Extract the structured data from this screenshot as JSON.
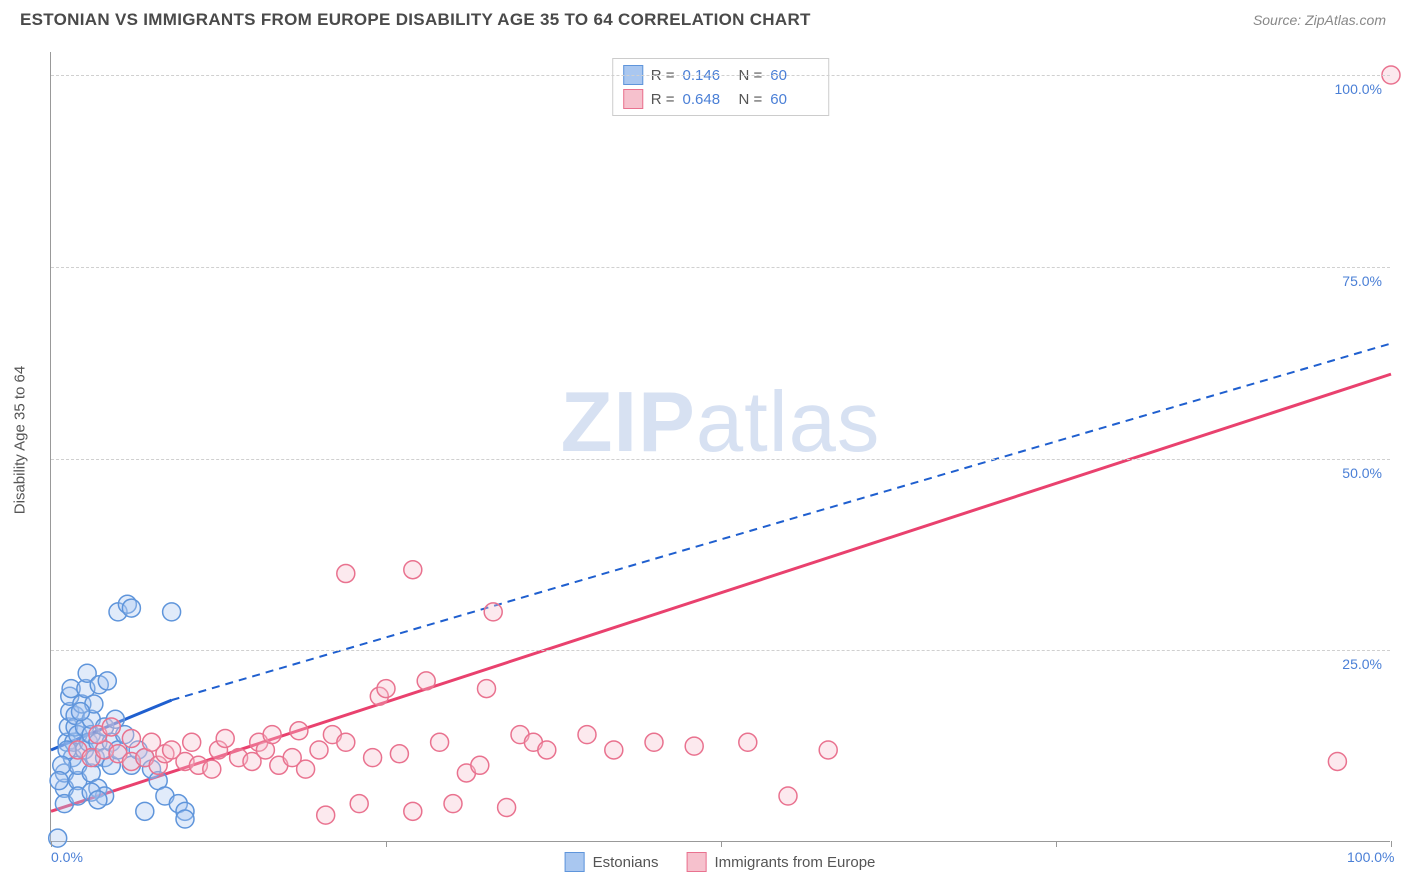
{
  "header": {
    "title": "ESTONIAN VS IMMIGRANTS FROM EUROPE DISABILITY AGE 35 TO 64 CORRELATION CHART",
    "source": "Source: ZipAtlas.com"
  },
  "y_axis_label": "Disability Age 35 to 64",
  "watermark": {
    "zip": "ZIP",
    "atlas": "atlas"
  },
  "chart": {
    "type": "scatter",
    "xlim": [
      0,
      100
    ],
    "ylim": [
      0,
      103
    ],
    "x_ticks": [
      0,
      25,
      50,
      75,
      100
    ],
    "y_ticks": [
      25,
      50,
      75,
      100
    ],
    "x_tick_labels": [
      "0.0%",
      "",
      "",
      "",
      "100.0%"
    ],
    "y_tick_labels": [
      "25.0%",
      "50.0%",
      "75.0%",
      "100.0%"
    ],
    "grid_color": "#d0d0d0",
    "background_color": "#ffffff",
    "marker_radius": 9,
    "marker_stroke_width": 1.5,
    "marker_fill_opacity": 0.35,
    "series": [
      {
        "name": "Estonians",
        "color_fill": "#a9c7f0",
        "color_stroke": "#5f95db",
        "trend_color": "#1f5fcf",
        "trend_solid": {
          "x1": 0,
          "y1": 12,
          "x2": 9,
          "y2": 18.5
        },
        "trend_dash": {
          "x1": 9,
          "y1": 18.5,
          "x2": 100,
          "y2": 65
        },
        "points": [
          [
            0.5,
            0.5
          ],
          [
            1,
            7
          ],
          [
            1,
            9
          ],
          [
            1.2,
            13
          ],
          [
            1.3,
            15
          ],
          [
            1.4,
            17
          ],
          [
            1.4,
            19
          ],
          [
            1.5,
            20
          ],
          [
            1.6,
            11
          ],
          [
            1.7,
            13
          ],
          [
            1.8,
            15
          ],
          [
            1.8,
            16.5
          ],
          [
            2,
            8
          ],
          [
            2,
            10
          ],
          [
            2,
            14
          ],
          [
            2.3,
            18
          ],
          [
            2.5,
            12
          ],
          [
            2.5,
            15
          ],
          [
            2.6,
            20
          ],
          [
            2.7,
            22
          ],
          [
            2.8,
            13
          ],
          [
            3,
            9
          ],
          [
            3,
            14
          ],
          [
            3,
            16
          ],
          [
            3.2,
            18
          ],
          [
            3.3,
            11
          ],
          [
            3.5,
            7
          ],
          [
            3.5,
            13
          ],
          [
            3.6,
            20.5
          ],
          [
            4,
            6
          ],
          [
            4,
            11
          ],
          [
            4,
            15
          ],
          [
            4.2,
            21
          ],
          [
            4.5,
            10
          ],
          [
            4.5,
            13
          ],
          [
            4.8,
            16
          ],
          [
            5,
            30
          ],
          [
            5,
            12
          ],
          [
            5.5,
            14
          ],
          [
            5.7,
            31
          ],
          [
            6,
            10
          ],
          [
            6,
            30.5
          ],
          [
            6.5,
            12
          ],
          [
            7,
            11
          ],
          [
            7,
            4
          ],
          [
            7.5,
            9.5
          ],
          [
            8,
            8
          ],
          [
            8.5,
            6
          ],
          [
            9,
            30
          ],
          [
            9.5,
            5
          ],
          [
            10,
            4
          ],
          [
            10,
            3
          ],
          [
            1,
            5
          ],
          [
            2,
            6
          ],
          [
            3,
            6.5
          ],
          [
            3.5,
            5.5
          ],
          [
            1.2,
            12
          ],
          [
            0.8,
            10
          ],
          [
            0.6,
            8
          ],
          [
            2.2,
            17
          ]
        ]
      },
      {
        "name": "Immigrants from Europe",
        "color_fill": "#f6c1cd",
        "color_stroke": "#e9728f",
        "trend_color": "#e9416e",
        "trend_solid": {
          "x1": 0,
          "y1": 4,
          "x2": 100,
          "y2": 61
        },
        "trend_dash": null,
        "points": [
          [
            2,
            12
          ],
          [
            3,
            11
          ],
          [
            4,
            12
          ],
          [
            5,
            11.5
          ],
          [
            6,
            10.5
          ],
          [
            7,
            11
          ],
          [
            8,
            10
          ],
          [
            8.5,
            11.5
          ],
          [
            9,
            12
          ],
          [
            10,
            10.5
          ],
          [
            10.5,
            13
          ],
          [
            11,
            10
          ],
          [
            12,
            9.5
          ],
          [
            12.5,
            12
          ],
          [
            13,
            13.5
          ],
          [
            14,
            11
          ],
          [
            15,
            10.5
          ],
          [
            15.5,
            13
          ],
          [
            16,
            12
          ],
          [
            17,
            10
          ],
          [
            18,
            11
          ],
          [
            19,
            9.5
          ],
          [
            20,
            12
          ],
          [
            20.5,
            3.5
          ],
          [
            21,
            14
          ],
          [
            22,
            13
          ],
          [
            22,
            35
          ],
          [
            23,
            5
          ],
          [
            24,
            11
          ],
          [
            24.5,
            19
          ],
          [
            25,
            20
          ],
          [
            26,
            11.5
          ],
          [
            27,
            4
          ],
          [
            27,
            35.5
          ],
          [
            28,
            21
          ],
          [
            29,
            13
          ],
          [
            30,
            5
          ],
          [
            31,
            9
          ],
          [
            32,
            10
          ],
          [
            32.5,
            20
          ],
          [
            33,
            30
          ],
          [
            34,
            4.5
          ],
          [
            35,
            14
          ],
          [
            36,
            13
          ],
          [
            37,
            12
          ],
          [
            40,
            14
          ],
          [
            42,
            12
          ],
          [
            45,
            13
          ],
          [
            48,
            12.5
          ],
          [
            52,
            13
          ],
          [
            55,
            6
          ],
          [
            58,
            12
          ],
          [
            100,
            100
          ],
          [
            3.5,
            14
          ],
          [
            4.5,
            15
          ],
          [
            6,
            13.5
          ],
          [
            7.5,
            13
          ],
          [
            16.5,
            14
          ],
          [
            18.5,
            14.5
          ],
          [
            96,
            10.5
          ]
        ]
      }
    ]
  },
  "legend_top": {
    "rows": [
      {
        "color_fill": "#a9c7f0",
        "color_stroke": "#5f95db",
        "r_label": "R =",
        "r_value": "0.146",
        "n_label": "N =",
        "n_value": "60"
      },
      {
        "color_fill": "#f6c1cd",
        "color_stroke": "#e9728f",
        "r_label": "R =",
        "r_value": "0.648",
        "n_label": "N =",
        "n_value": "60"
      }
    ]
  },
  "legend_bottom": {
    "items": [
      {
        "color_fill": "#a9c7f0",
        "color_stroke": "#5f95db",
        "label": "Estonians"
      },
      {
        "color_fill": "#f6c1cd",
        "color_stroke": "#e9728f",
        "label": "Immigrants from Europe"
      }
    ]
  }
}
